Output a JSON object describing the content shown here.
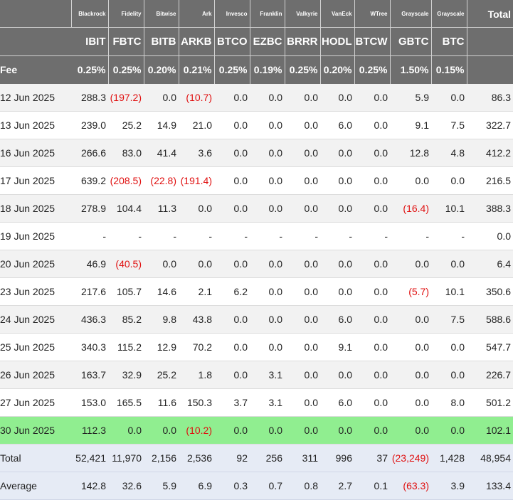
{
  "issuers": [
    "Blackrock",
    "Fidelity",
    "Bitwise",
    "Ark",
    "Invesco",
    "Franklin",
    "Valkyrie",
    "VanEck",
    "WTree",
    "Grayscale",
    "Grayscale"
  ],
  "total_label": "Total",
  "tickers": [
    "IBIT",
    "FBTC",
    "BITB",
    "ARKB",
    "BTCO",
    "EZBC",
    "BRRR",
    "HODL",
    "BTCW",
    "GBTC",
    "BTC"
  ],
  "fee_label": "Fee",
  "fees": [
    "0.25%",
    "0.25%",
    "0.20%",
    "0.21%",
    "0.25%",
    "0.19%",
    "0.25%",
    "0.20%",
    "0.25%",
    "1.50%",
    "0.15%"
  ],
  "rows": [
    {
      "date": "12 Jun 2025",
      "values": [
        "288.3",
        "(197.2)",
        "0.0",
        "(10.7)",
        "0.0",
        "0.0",
        "0.0",
        "0.0",
        "0.0",
        "5.9",
        "0.0"
      ],
      "total": "86.3"
    },
    {
      "date": "13 Jun 2025",
      "values": [
        "239.0",
        "25.2",
        "14.9",
        "21.0",
        "0.0",
        "0.0",
        "0.0",
        "6.0",
        "0.0",
        "9.1",
        "7.5"
      ],
      "total": "322.7"
    },
    {
      "date": "16 Jun 2025",
      "values": [
        "266.6",
        "83.0",
        "41.4",
        "3.6",
        "0.0",
        "0.0",
        "0.0",
        "0.0",
        "0.0",
        "12.8",
        "4.8"
      ],
      "total": "412.2"
    },
    {
      "date": "17 Jun 2025",
      "values": [
        "639.2",
        "(208.5)",
        "(22.8)",
        "(191.4)",
        "0.0",
        "0.0",
        "0.0",
        "0.0",
        "0.0",
        "0.0",
        "0.0"
      ],
      "total": "216.5"
    },
    {
      "date": "18 Jun 2025",
      "values": [
        "278.9",
        "104.4",
        "11.3",
        "0.0",
        "0.0",
        "0.0",
        "0.0",
        "0.0",
        "0.0",
        "(16.4)",
        "10.1"
      ],
      "total": "388.3"
    },
    {
      "date": "19 Jun 2025",
      "values": [
        "-",
        "-",
        "-",
        "-",
        "-",
        "-",
        "-",
        "-",
        "-",
        "-",
        "-"
      ],
      "total": "0.0"
    },
    {
      "date": "20 Jun 2025",
      "values": [
        "46.9",
        "(40.5)",
        "0.0",
        "0.0",
        "0.0",
        "0.0",
        "0.0",
        "0.0",
        "0.0",
        "0.0",
        "0.0"
      ],
      "total": "6.4"
    },
    {
      "date": "23 Jun 2025",
      "values": [
        "217.6",
        "105.7",
        "14.6",
        "2.1",
        "6.2",
        "0.0",
        "0.0",
        "0.0",
        "0.0",
        "(5.7)",
        "10.1"
      ],
      "total": "350.6"
    },
    {
      "date": "24 Jun 2025",
      "values": [
        "436.3",
        "85.2",
        "9.8",
        "43.8",
        "0.0",
        "0.0",
        "0.0",
        "6.0",
        "0.0",
        "0.0",
        "7.5"
      ],
      "total": "588.6"
    },
    {
      "date": "25 Jun 2025",
      "values": [
        "340.3",
        "115.2",
        "12.9",
        "70.2",
        "0.0",
        "0.0",
        "0.0",
        "9.1",
        "0.0",
        "0.0",
        "0.0"
      ],
      "total": "547.7"
    },
    {
      "date": "26 Jun 2025",
      "values": [
        "163.7",
        "32.9",
        "25.2",
        "1.8",
        "0.0",
        "3.1",
        "0.0",
        "0.0",
        "0.0",
        "0.0",
        "0.0"
      ],
      "total": "226.7"
    },
    {
      "date": "27 Jun 2025",
      "values": [
        "153.0",
        "165.5",
        "11.6",
        "150.3",
        "3.7",
        "3.1",
        "0.0",
        "6.0",
        "0.0",
        "0.0",
        "8.0"
      ],
      "total": "501.2"
    },
    {
      "date": "30 Jun 2025",
      "values": [
        "112.3",
        "0.0",
        "0.0",
        "(10.2)",
        "0.0",
        "0.0",
        "0.0",
        "0.0",
        "0.0",
        "0.0",
        "0.0"
      ],
      "total": "102.1"
    }
  ],
  "total_row": {
    "label": "Total",
    "values": [
      "52,421",
      "11,970",
      "2,156",
      "2,536",
      "92",
      "256",
      "311",
      "996",
      "37",
      "(23,249)",
      "1,428"
    ],
    "total": "48,954"
  },
  "average_row": {
    "label": "Average",
    "values": [
      "142.8",
      "32.6",
      "5.9",
      "6.9",
      "0.3",
      "0.7",
      "0.8",
      "2.7",
      "0.1",
      "(63.3)",
      "3.9"
    ],
    "total": "133.4"
  },
  "colors": {
    "header_bg": "#6e6e6e",
    "header_text": "#ffffff",
    "negative": "#e01010",
    "highlight": "#90ee90",
    "alt_row": "#f2f2f2",
    "footer_bg": "#e6ebf5"
  }
}
